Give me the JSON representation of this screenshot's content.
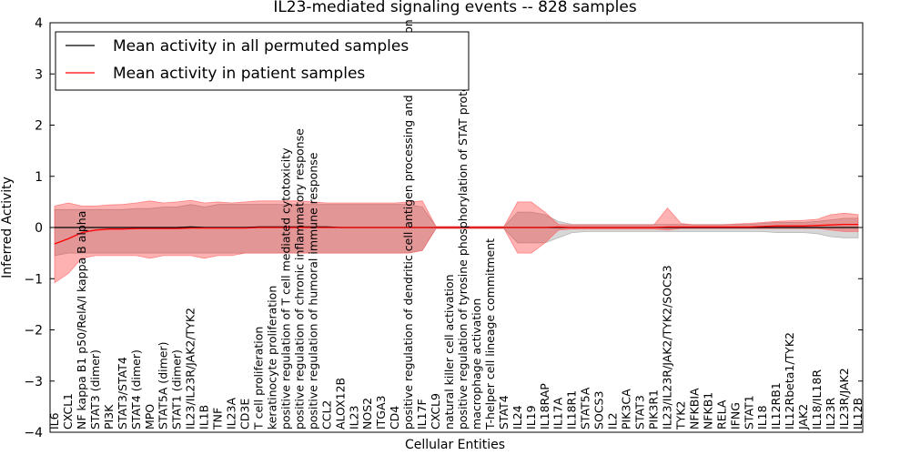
{
  "chart_data": {
    "type": "line",
    "title": "IL23-mediated signaling events -- 828 samples",
    "xlabel": "Cellular Entities",
    "ylabel": "Inferred Activity",
    "ylim": [
      -4,
      4
    ],
    "yticks": [
      -4,
      -3,
      -2,
      -1,
      0,
      1,
      2,
      3,
      4
    ],
    "grid": false,
    "legend_position": "top-left",
    "categories": [
      "IL6",
      "CXCL1",
      "NF kappa B1 p50/RelA/I kappa B alpha",
      "STAT3 (dimer)",
      "PI3K",
      "STAT3/STAT4",
      "STAT4 (dimer)",
      "MPO",
      "STAT5A (dimer)",
      "STAT1 (dimer)",
      "IL23/IL23R/JAK2/TYK2",
      "IL1B",
      "TNF",
      "IL23A",
      "CD3E",
      "T cell proliferation",
      "keratinocyte proliferation",
      "positive regulation of T cell mediated cytotoxicity",
      "positive regulation of chronic inflammatory response",
      "positive regulation of humoral immune response",
      "CCL2",
      "ALOX12B",
      "IL23",
      "NOS2",
      "ITGA3",
      "CD4",
      "positive regulation of dendritic cell antigen processing and presentation",
      "IL17F",
      "CXCL9",
      "natural killer cell activation",
      "positive regulation of tyrosine phosphorylation of STAT protein",
      "macrophage activation",
      "T-helper cell lineage commitment",
      "STAT4",
      "IL24",
      "IL19",
      "IL18RAP",
      "IL17A",
      "IL18R1",
      "STAT5A",
      "SOCS3",
      "IL2",
      "PIK3CA",
      "STAT3",
      "PIK3R1",
      "IL23/IL23R/JAK2/TYK2/SOCS3",
      "TYK2",
      "NFKBIA",
      "NFKB1",
      "RELA",
      "IFNG",
      "STAT1",
      "IL18",
      "IL12RB1",
      "IL12Rbeta1/TYK2",
      "JAK2",
      "IL18/IL18R",
      "IL23R",
      "IL23R/JAK2",
      "IL12B"
    ],
    "series": [
      {
        "name": "Mean activity in all permuted samples",
        "color": "#000000",
        "values": [
          0.0,
          0.0,
          0.0,
          0.0,
          0.0,
          0.0,
          0.0,
          0.0,
          0.0,
          0.0,
          0.01,
          0.0,
          0.0,
          0.0,
          0.0,
          0.01,
          0.01,
          0.01,
          0.01,
          0.01,
          0.01,
          0.0,
          0.0,
          0.0,
          0.0,
          0.0,
          0.0,
          0.0,
          0.0,
          0.0,
          0.0,
          0.0,
          0.0,
          0.0,
          0.0,
          0.0,
          0.0,
          0.0,
          0.0,
          0.0,
          0.0,
          0.0,
          0.0,
          0.0,
          0.0,
          0.0,
          0.0,
          0.0,
          0.0,
          0.0,
          0.0,
          0.0,
          0.0,
          0.0,
          0.0,
          0.0,
          0.0,
          0.0,
          0.0,
          0.0
        ],
        "band_low": [
          -0.55,
          -0.5,
          -0.5,
          -0.5,
          -0.5,
          -0.5,
          -0.5,
          -0.5,
          -0.5,
          -0.5,
          -0.5,
          -0.5,
          -0.5,
          -0.5,
          -0.5,
          -0.5,
          -0.5,
          -0.5,
          -0.5,
          -0.5,
          -0.5,
          -0.5,
          -0.5,
          -0.5,
          -0.5,
          -0.5,
          -0.5,
          -0.45,
          -0.02,
          -0.02,
          -0.02,
          -0.02,
          -0.02,
          -0.02,
          -0.3,
          -0.3,
          -0.3,
          -0.2,
          -0.1,
          -0.08,
          -0.08,
          -0.08,
          -0.08,
          -0.08,
          -0.08,
          -0.08,
          -0.08,
          -0.08,
          -0.08,
          -0.08,
          -0.08,
          -0.08,
          -0.08,
          -0.1,
          -0.1,
          -0.1,
          -0.12,
          -0.18,
          -0.2,
          -0.2
        ],
        "band_high": [
          0.35,
          0.35,
          0.35,
          0.35,
          0.35,
          0.35,
          0.37,
          0.37,
          0.4,
          0.4,
          0.45,
          0.4,
          0.45,
          0.45,
          0.45,
          0.45,
          0.45,
          0.45,
          0.45,
          0.45,
          0.45,
          0.45,
          0.45,
          0.45,
          0.45,
          0.45,
          0.45,
          0.4,
          0.02,
          0.02,
          0.02,
          0.02,
          0.02,
          0.02,
          0.3,
          0.3,
          0.25,
          0.12,
          0.06,
          0.06,
          0.06,
          0.06,
          0.06,
          0.06,
          0.06,
          0.06,
          0.06,
          0.06,
          0.06,
          0.06,
          0.06,
          0.06,
          0.08,
          0.1,
          0.1,
          0.1,
          0.12,
          0.15,
          0.18,
          0.18
        ]
      },
      {
        "name": "Mean activity in patient samples",
        "color": "#ff0000",
        "values": [
          -0.32,
          -0.22,
          -0.1,
          -0.05,
          -0.03,
          -0.03,
          -0.02,
          -0.02,
          -0.02,
          -0.02,
          -0.01,
          -0.01,
          -0.01,
          -0.01,
          -0.01,
          0.0,
          0.0,
          0.0,
          0.0,
          0.0,
          0.0,
          0.0,
          0.0,
          0.0,
          0.0,
          0.0,
          0.0,
          0.0,
          0.0,
          0.0,
          0.0,
          0.0,
          0.0,
          0.0,
          0.0,
          0.0,
          0.0,
          0.01,
          0.0,
          0.0,
          0.0,
          0.0,
          0.0,
          0.0,
          0.0,
          0.01,
          0.01,
          0.01,
          0.01,
          0.01,
          0.01,
          0.01,
          0.02,
          0.03,
          0.03,
          0.03,
          0.04,
          0.05,
          0.06,
          0.06
        ],
        "band_low": [
          -1.08,
          -0.9,
          -0.6,
          -0.55,
          -0.55,
          -0.55,
          -0.55,
          -0.6,
          -0.55,
          -0.55,
          -0.55,
          -0.6,
          -0.55,
          -0.55,
          -0.5,
          -0.5,
          -0.5,
          -0.5,
          -0.5,
          -0.5,
          -0.5,
          -0.5,
          -0.5,
          -0.5,
          -0.5,
          -0.5,
          -0.5,
          -0.45,
          -0.02,
          -0.02,
          -0.02,
          -0.02,
          -0.02,
          -0.02,
          -0.5,
          -0.5,
          -0.3,
          -0.05,
          -0.03,
          -0.03,
          -0.03,
          -0.03,
          -0.03,
          -0.03,
          -0.03,
          -0.05,
          -0.02,
          -0.02,
          -0.02,
          -0.02,
          -0.02,
          -0.02,
          -0.02,
          -0.02,
          -0.02,
          -0.02,
          -0.02,
          -0.05,
          -0.08,
          -0.08
        ],
        "band_high": [
          0.42,
          0.48,
          0.42,
          0.42,
          0.44,
          0.45,
          0.48,
          0.52,
          0.48,
          0.5,
          0.53,
          0.48,
          0.5,
          0.48,
          0.5,
          0.52,
          0.52,
          0.52,
          0.52,
          0.5,
          0.48,
          0.48,
          0.48,
          0.48,
          0.48,
          0.48,
          0.5,
          0.52,
          0.02,
          0.02,
          0.02,
          0.02,
          0.02,
          0.02,
          0.5,
          0.5,
          0.3,
          0.06,
          0.05,
          0.05,
          0.05,
          0.05,
          0.05,
          0.05,
          0.05,
          0.38,
          0.08,
          0.05,
          0.05,
          0.05,
          0.07,
          0.08,
          0.1,
          0.12,
          0.13,
          0.14,
          0.16,
          0.25,
          0.28,
          0.25
        ]
      }
    ]
  }
}
